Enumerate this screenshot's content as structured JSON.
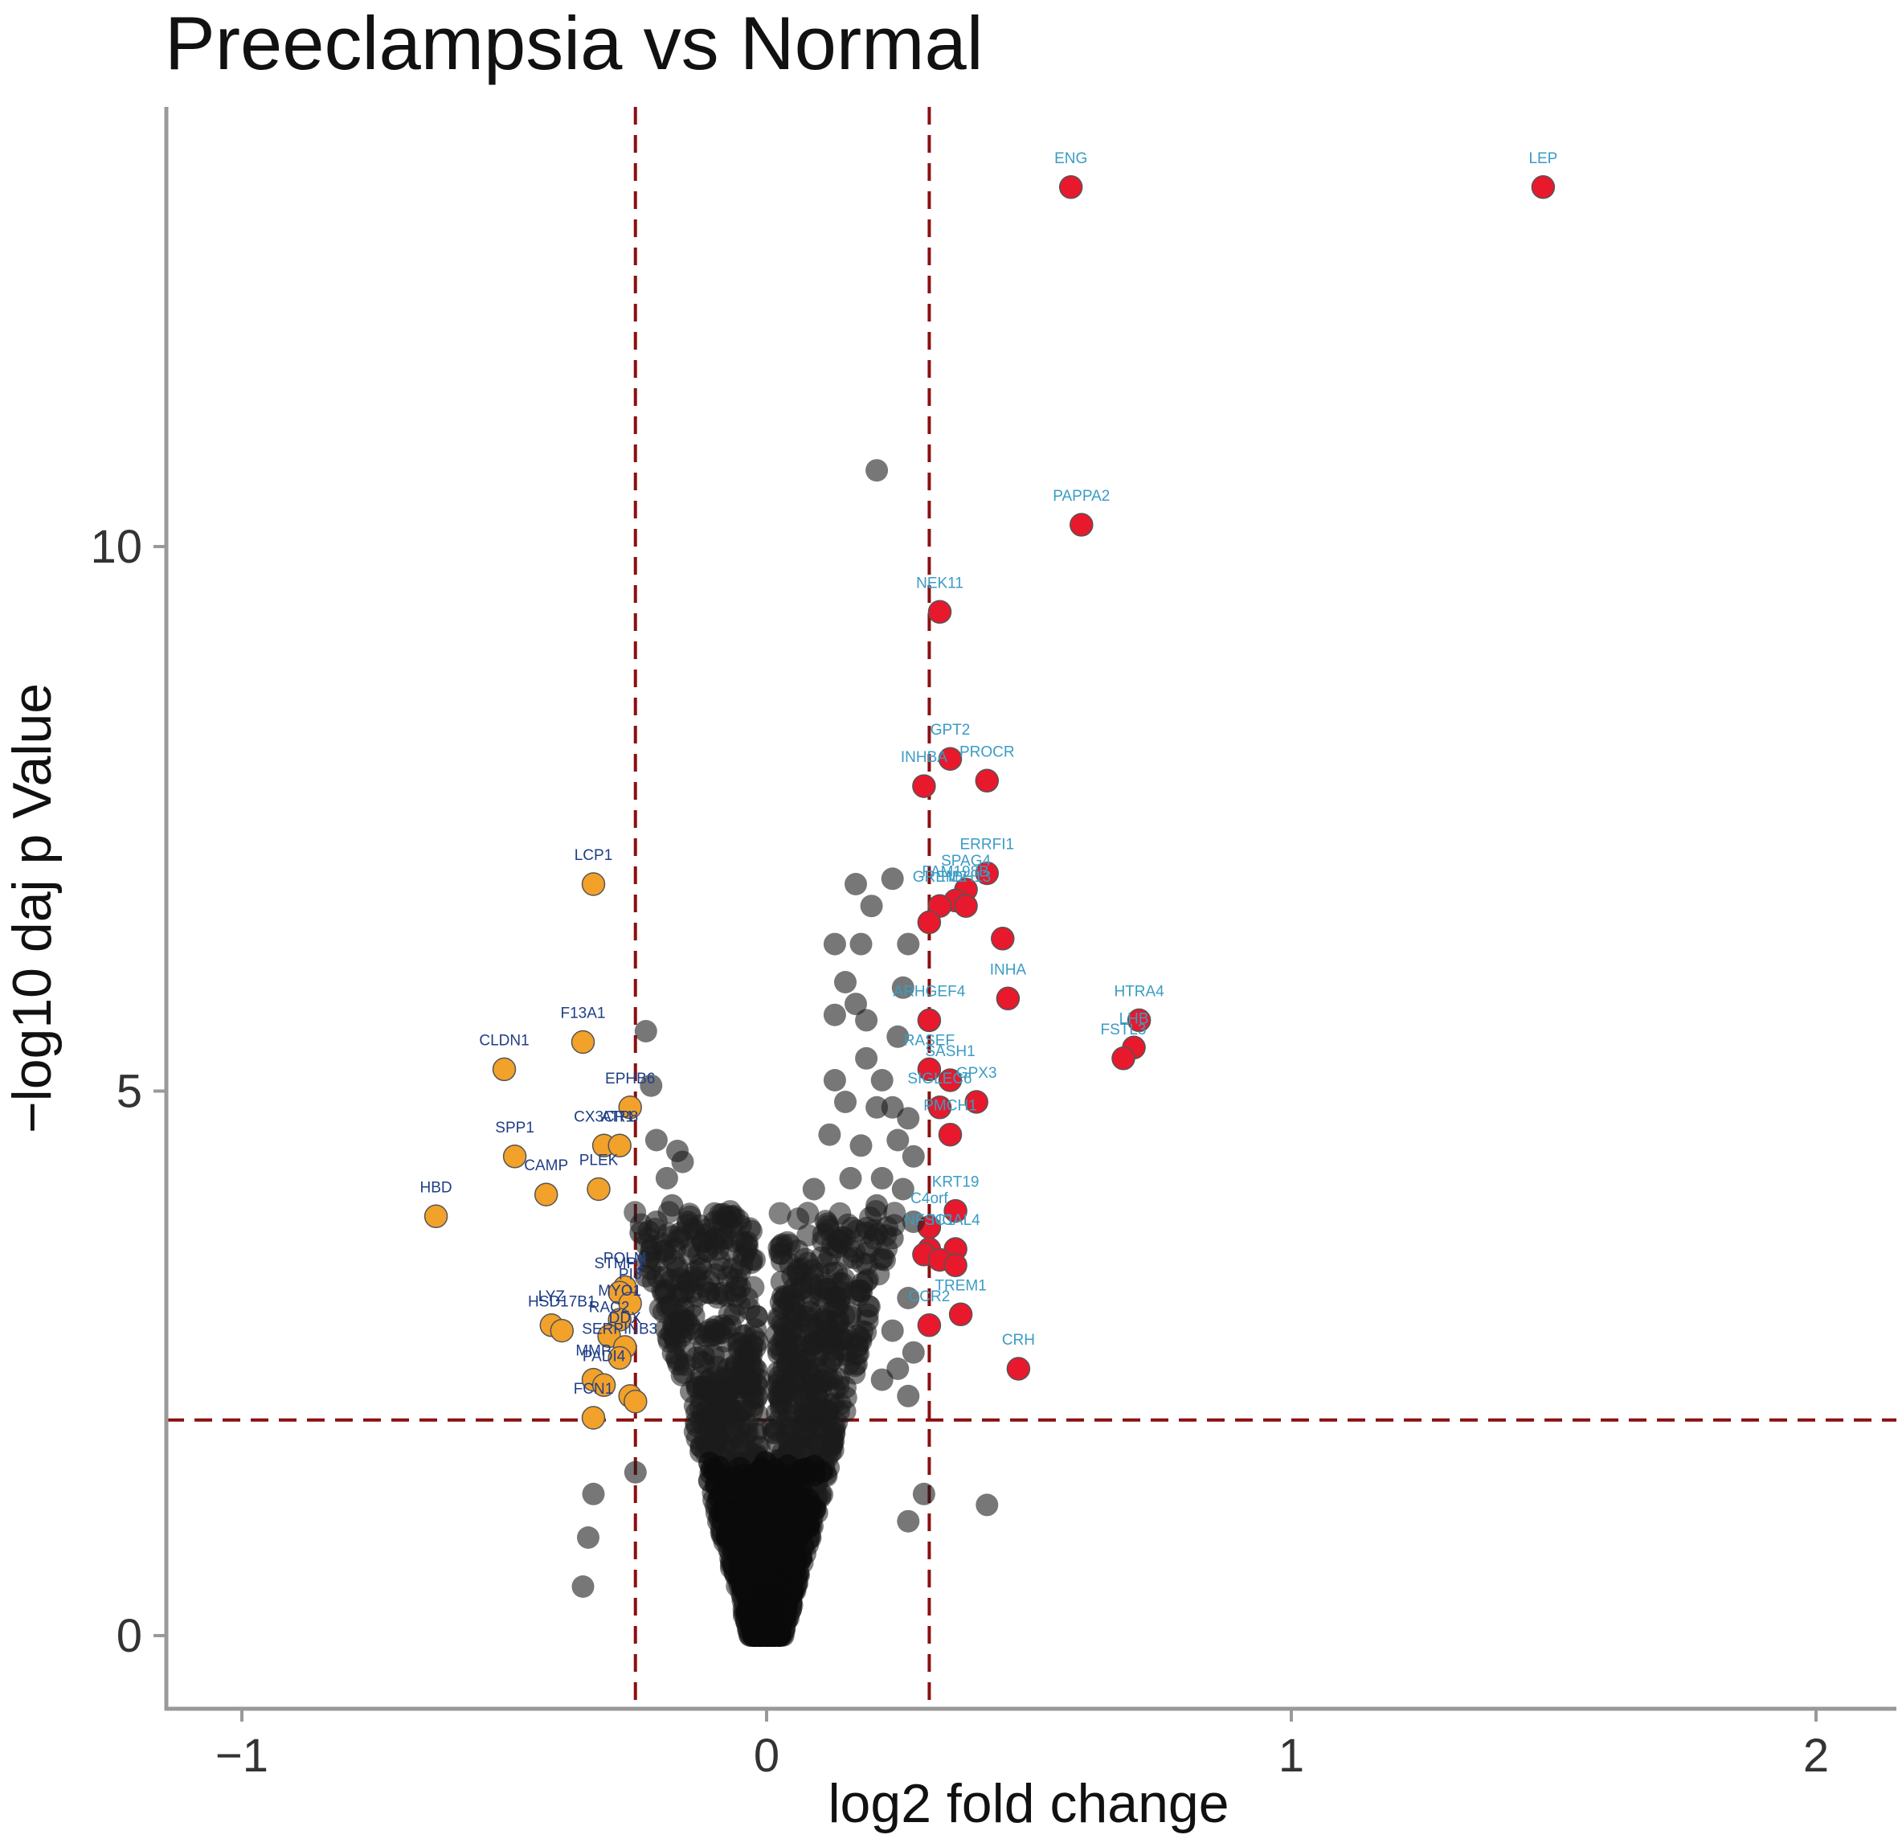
{
  "chart_data": {
    "type": "scatter",
    "title": "Preeclampsia vs Normal",
    "xlabel": "log2 fold change",
    "ylabel": "−log10 daj p Value",
    "xlim": [
      -1.0,
      2.1
    ],
    "ylim": [
      -0.7,
      14.3
    ],
    "xticks": [
      -1,
      0,
      1,
      2
    ],
    "xtick_labels": [
      "−1",
      "0",
      "1",
      "2"
    ],
    "yticks": [
      0,
      5,
      10
    ],
    "ytick_labels": [
      "0",
      "5",
      "10"
    ],
    "grid": false,
    "legend": "none",
    "thresholds": {
      "log2fc_low": -0.25,
      "log2fc_high": 0.31,
      "neglog10p": 1.98
    },
    "colors": {
      "up": "#e8192c",
      "down": "#f2a12a",
      "not_significant": "#1c1c1c",
      "threshold_line": "#8b1010",
      "label_up": "#3a9cc4",
      "label_down": "#1f3e86",
      "axis": "#999999"
    },
    "series": [
      {
        "role": "up",
        "points": [
          {
            "x": 0.58,
            "y": 13.3,
            "label": "ENG"
          },
          {
            "x": 1.48,
            "y": 13.3,
            "label": "LEP"
          },
          {
            "x": 0.6,
            "y": 10.2,
            "label": "PAPPA2"
          },
          {
            "x": 0.33,
            "y": 9.4,
            "label": "NEK11"
          },
          {
            "x": 0.35,
            "y": 8.05,
            "label": "GPT2"
          },
          {
            "x": 0.42,
            "y": 7.85,
            "label": "PROCR"
          },
          {
            "x": 0.3,
            "y": 7.8,
            "label": "INHBA"
          },
          {
            "x": 0.42,
            "y": 7.0,
            "label": "ERRFI1"
          },
          {
            "x": 0.38,
            "y": 6.85,
            "label": "SPAG4"
          },
          {
            "x": 0.36,
            "y": 6.75,
            "label": "FAM198B"
          },
          {
            "x": 0.33,
            "y": 6.7,
            "label": "GREM2"
          },
          {
            "x": 0.38,
            "y": 6.7,
            "label": "HDH13"
          },
          {
            "x": 0.31,
            "y": 6.55,
            "label": ""
          },
          {
            "x": 0.45,
            "y": 6.4,
            "label": ""
          },
          {
            "x": 0.46,
            "y": 5.85,
            "label": "INHA"
          },
          {
            "x": 0.31,
            "y": 5.65,
            "label": "ARHGEF4"
          },
          {
            "x": 0.71,
            "y": 5.65,
            "label": "HTRA4"
          },
          {
            "x": 0.7,
            "y": 5.4,
            "label": "LHB"
          },
          {
            "x": 0.68,
            "y": 5.3,
            "label": "FSTL3"
          },
          {
            "x": 0.31,
            "y": 5.2,
            "label": "RASEF"
          },
          {
            "x": 0.35,
            "y": 5.1,
            "label": "SASH1"
          },
          {
            "x": 0.4,
            "y": 4.9,
            "label": "GPX3"
          },
          {
            "x": 0.33,
            "y": 4.85,
            "label": "SIGLEC6"
          },
          {
            "x": 0.35,
            "y": 4.6,
            "label": "PMCH1"
          },
          {
            "x": 0.36,
            "y": 3.9,
            "label": "KRT19"
          },
          {
            "x": 0.31,
            "y": 3.75,
            "label": "C4orf"
          },
          {
            "x": 0.36,
            "y": 3.55,
            "label": "NCAL4"
          },
          {
            "x": 0.31,
            "y": 3.55,
            "label": "NFSC1"
          },
          {
            "x": 0.3,
            "y": 3.5,
            "label": ""
          },
          {
            "x": 0.33,
            "y": 3.45,
            "label": ""
          },
          {
            "x": 0.36,
            "y": 3.4,
            "label": ""
          },
          {
            "x": 0.37,
            "y": 2.95,
            "label": "TREM1"
          },
          {
            "x": 0.31,
            "y": 2.85,
            "label": "CCR2"
          },
          {
            "x": 0.48,
            "y": 2.45,
            "label": "CRH"
          }
        ]
      },
      {
        "role": "down",
        "points": [
          {
            "x": -0.33,
            "y": 6.9,
            "label": "LCP1"
          },
          {
            "x": -0.35,
            "y": 5.45,
            "label": "F13A1"
          },
          {
            "x": -0.5,
            "y": 5.2,
            "label": "CLDN1"
          },
          {
            "x": -0.26,
            "y": 4.85,
            "label": "EPHB6"
          },
          {
            "x": -0.31,
            "y": 4.5,
            "label": "CX3CR1"
          },
          {
            "x": -0.28,
            "y": 4.5,
            "label": "ATP8"
          },
          {
            "x": -0.48,
            "y": 4.4,
            "label": "SPP1"
          },
          {
            "x": -0.32,
            "y": 4.1,
            "label": "PLEK"
          },
          {
            "x": -0.42,
            "y": 4.05,
            "label": "CAMP"
          },
          {
            "x": -0.63,
            "y": 3.85,
            "label": "HBD"
          },
          {
            "x": -0.27,
            "y": 3.2,
            "label": "POLM"
          },
          {
            "x": -0.28,
            "y": 3.15,
            "label": "STMP1"
          },
          {
            "x": -0.26,
            "y": 3.05,
            "label": "PI3"
          },
          {
            "x": -0.28,
            "y": 2.9,
            "label": "MYO1"
          },
          {
            "x": -0.3,
            "y": 2.75,
            "label": "RAC2"
          },
          {
            "x": -0.41,
            "y": 2.85,
            "label": "LYZ"
          },
          {
            "x": -0.39,
            "y": 2.8,
            "label": "HSD17B1"
          },
          {
            "x": -0.27,
            "y": 2.65,
            "label": "DDX"
          },
          {
            "x": -0.28,
            "y": 2.55,
            "label": "SERPINB3"
          },
          {
            "x": -0.33,
            "y": 2.35,
            "label": "MMP"
          },
          {
            "x": -0.31,
            "y": 2.3,
            "label": "PADI4"
          },
          {
            "x": -0.26,
            "y": 2.2,
            "label": ""
          },
          {
            "x": -0.33,
            "y": 2.0,
            "label": "FCN1"
          },
          {
            "x": -0.25,
            "y": 2.15,
            "label": ""
          }
        ]
      },
      {
        "role": "not_significant",
        "points": [
          {
            "x": 0.21,
            "y": 10.7,
            "label": ""
          },
          {
            "x": 0.17,
            "y": 6.9,
            "label": ""
          },
          {
            "x": 0.24,
            "y": 6.95,
            "label": ""
          },
          {
            "x": 0.2,
            "y": 6.7,
            "label": ""
          },
          {
            "x": 0.13,
            "y": 6.35,
            "label": ""
          },
          {
            "x": 0.18,
            "y": 6.35,
            "label": ""
          },
          {
            "x": 0.27,
            "y": 6.35,
            "label": ""
          },
          {
            "x": 0.15,
            "y": 6.0,
            "label": ""
          },
          {
            "x": 0.26,
            "y": 5.95,
            "label": ""
          },
          {
            "x": 0.17,
            "y": 5.8,
            "label": ""
          },
          {
            "x": 0.13,
            "y": 5.7,
            "label": ""
          },
          {
            "x": 0.19,
            "y": 5.65,
            "label": ""
          },
          {
            "x": 0.25,
            "y": 5.5,
            "label": ""
          },
          {
            "x": 0.19,
            "y": 5.3,
            "label": ""
          },
          {
            "x": 0.13,
            "y": 5.1,
            "label": ""
          },
          {
            "x": 0.22,
            "y": 5.1,
            "label": ""
          },
          {
            "x": 0.15,
            "y": 4.9,
            "label": ""
          },
          {
            "x": 0.21,
            "y": 4.85,
            "label": ""
          },
          {
            "x": 0.24,
            "y": 4.85,
            "label": ""
          },
          {
            "x": 0.27,
            "y": 4.75,
            "label": ""
          },
          {
            "x": 0.12,
            "y": 4.6,
            "label": ""
          },
          {
            "x": 0.18,
            "y": 4.5,
            "label": ""
          },
          {
            "x": 0.25,
            "y": 4.55,
            "label": ""
          },
          {
            "x": 0.28,
            "y": 4.4,
            "label": ""
          },
          {
            "x": 0.16,
            "y": 4.2,
            "label": ""
          },
          {
            "x": 0.22,
            "y": 4.2,
            "label": ""
          },
          {
            "x": 0.09,
            "y": 4.1,
            "label": ""
          },
          {
            "x": 0.26,
            "y": 4.1,
            "label": ""
          },
          {
            "x": 0.21,
            "y": 3.95,
            "label": ""
          },
          {
            "x": 0.28,
            "y": 3.8,
            "label": ""
          },
          {
            "x": 0.24,
            "y": 3.65,
            "label": ""
          },
          {
            "x": 0.27,
            "y": 3.1,
            "label": ""
          },
          {
            "x": 0.24,
            "y": 2.8,
            "label": ""
          },
          {
            "x": 0.28,
            "y": 2.6,
            "label": ""
          },
          {
            "x": 0.25,
            "y": 2.45,
            "label": ""
          },
          {
            "x": 0.27,
            "y": 2.2,
            "label": ""
          },
          {
            "x": 0.22,
            "y": 2.35,
            "label": ""
          },
          {
            "x": 0.42,
            "y": 1.2,
            "label": ""
          },
          {
            "x": 0.27,
            "y": 1.05,
            "label": ""
          },
          {
            "x": 0.3,
            "y": 1.3,
            "label": ""
          },
          {
            "x": -0.23,
            "y": 5.55,
            "label": ""
          },
          {
            "x": -0.22,
            "y": 5.05,
            "label": ""
          },
          {
            "x": -0.21,
            "y": 4.55,
            "label": ""
          },
          {
            "x": -0.17,
            "y": 4.45,
            "label": ""
          },
          {
            "x": -0.16,
            "y": 4.35,
            "label": ""
          },
          {
            "x": -0.19,
            "y": 4.2,
            "label": ""
          },
          {
            "x": -0.18,
            "y": 3.95,
            "label": ""
          },
          {
            "x": -0.21,
            "y": 3.8,
            "label": ""
          },
          {
            "x": -0.15,
            "y": 3.8,
            "label": ""
          },
          {
            "x": -0.24,
            "y": 3.7,
            "label": ""
          },
          {
            "x": -0.2,
            "y": 3.6,
            "label": ""
          },
          {
            "x": -0.17,
            "y": 3.35,
            "label": ""
          },
          {
            "x": -0.23,
            "y": 3.3,
            "label": ""
          },
          {
            "x": -0.33,
            "y": 1.3,
            "label": ""
          },
          {
            "x": -0.34,
            "y": 0.9,
            "label": ""
          },
          {
            "x": -0.35,
            "y": 0.45,
            "label": ""
          },
          {
            "x": -0.25,
            "y": 1.5,
            "label": ""
          }
        ]
      }
    ]
  }
}
